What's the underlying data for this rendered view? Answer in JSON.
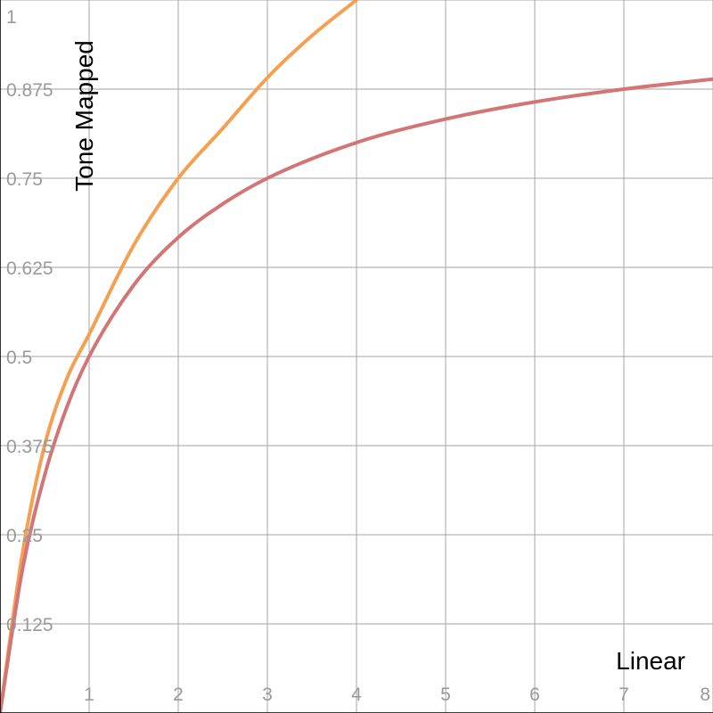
{
  "chart_data": {
    "type": "line",
    "title": "",
    "xlabel": "Linear",
    "ylabel": "Tone Mapped",
    "xlim": [
      0,
      8
    ],
    "ylim": [
      0,
      1
    ],
    "grid": true,
    "x_ticks": [
      1,
      2,
      3,
      4,
      5,
      6,
      7,
      8
    ],
    "x_tick_labels": [
      "1",
      "2",
      "3",
      "4",
      "5",
      "6",
      "7",
      "8"
    ],
    "y_ticks": [
      0.125,
      0.25,
      0.375,
      0.5,
      0.625,
      0.75,
      0.875,
      1
    ],
    "y_tick_labels": [
      "0.125",
      "0.25",
      "0.375",
      "0.5",
      "0.625",
      "0.75",
      "0.875",
      "1"
    ],
    "series": [
      {
        "color": "#f5a050",
        "x": [
          0,
          0.25,
          0.5,
          0.75,
          1,
          1.5,
          2,
          2.5,
          3,
          3.5,
          4
        ],
        "y": [
          0,
          0.222,
          0.375,
          0.469,
          0.531,
          0.656,
          0.75,
          0.82,
          0.891,
          0.95,
          1.0
        ]
      },
      {
        "color": "#d47575",
        "x": [
          0,
          0.25,
          0.5,
          0.75,
          1,
          1.5,
          2,
          2.5,
          3,
          4,
          5,
          6,
          7,
          8
        ],
        "y": [
          0,
          0.2,
          0.333,
          0.429,
          0.5,
          0.6,
          0.667,
          0.714,
          0.75,
          0.8,
          0.833,
          0.857,
          0.875,
          0.889
        ]
      }
    ]
  }
}
